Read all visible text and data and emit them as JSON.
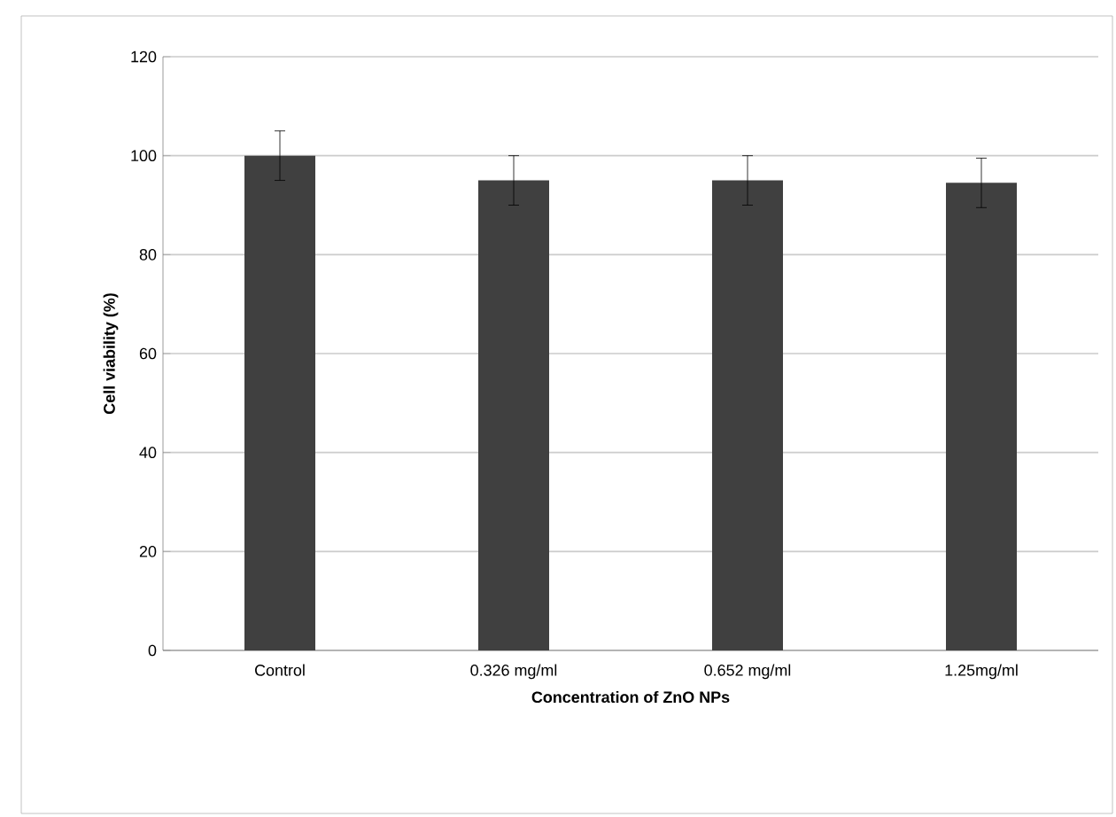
{
  "chart_data": {
    "type": "bar",
    "categories": [
      "Control",
      "0.326 mg/ml",
      "0.652 mg/ml",
      "1.25mg/ml"
    ],
    "values": [
      100,
      95,
      95,
      94.5
    ],
    "errors": [
      5,
      5,
      5,
      5
    ],
    "color": "#404040",
    "xlabel": "Concentration of ZnO NPs",
    "ylabel": "Cell viability (%)",
    "ylim": [
      0,
      120
    ],
    "yticks": [
      0,
      20,
      40,
      60,
      80,
      100,
      120
    ],
    "grid": "y"
  }
}
